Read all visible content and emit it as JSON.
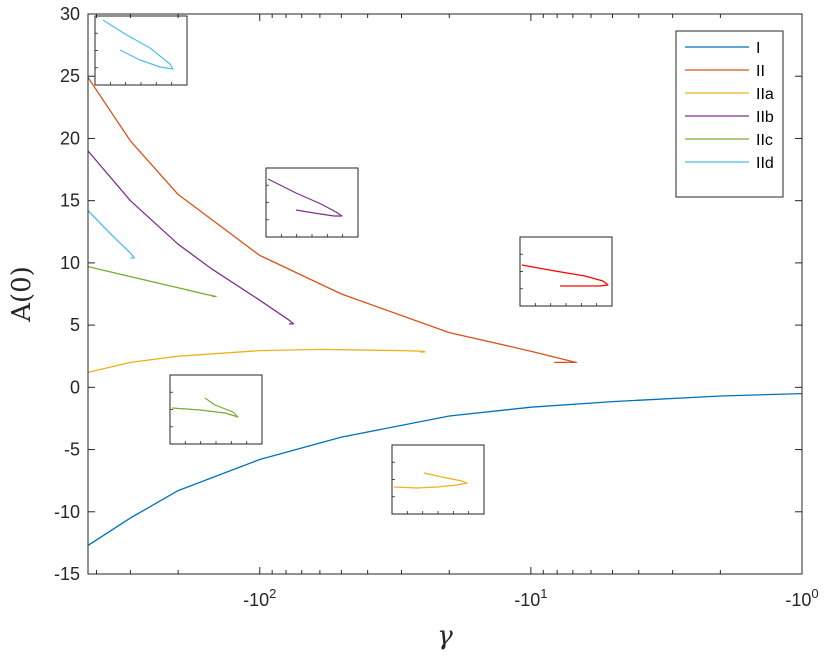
{
  "chart_data": {
    "type": "line",
    "xlabel": "γ",
    "ylabel": "A(0)",
    "xscale": "log (negative γ)",
    "xlim": [
      -430,
      -1
    ],
    "ylim": [
      -15,
      30
    ],
    "xticks": [
      {
        "value": -100,
        "base": "-10",
        "exp": "2"
      },
      {
        "value": -10,
        "base": "-10",
        "exp": "1"
      },
      {
        "value": -1,
        "base": "-10",
        "exp": "0"
      }
    ],
    "yticks": [
      -15,
      -10,
      -5,
      0,
      5,
      10,
      15,
      20,
      25,
      30
    ],
    "legend_position": "top-right",
    "colors": {
      "I": "#0072BD",
      "II": "#D95319",
      "IIa": "#EDB120",
      "IIb": "#7E2F8E",
      "IIc": "#77AC30",
      "IId": "#4DBEEE",
      "inset_II": "#FF0000"
    },
    "series": [
      {
        "name": "I",
        "x": [
          -430,
          -300,
          -200,
          -100,
          -50,
          -20,
          -10,
          -5,
          -2,
          -1
        ],
        "y": [
          -12.7,
          -10.5,
          -8.3,
          -5.8,
          -4.0,
          -2.3,
          -1.6,
          -1.15,
          -0.7,
          -0.5
        ]
      },
      {
        "name": "II",
        "x": [
          -430,
          -300,
          -200,
          -100,
          -50,
          -20,
          -10,
          -7.1,
          -6.8,
          -8.2
        ],
        "y": [
          24.9,
          19.8,
          15.5,
          10.6,
          7.5,
          4.4,
          2.9,
          2.1,
          2.0,
          2.0
        ]
      },
      {
        "name": "IIa",
        "x": [
          -430,
          -300,
          -200,
          -100,
          -60,
          -30,
          -25,
          -24.6,
          -25.5
        ],
        "y": [
          1.2,
          2.0,
          2.5,
          2.95,
          3.05,
          2.95,
          2.9,
          2.85,
          2.82
        ]
      },
      {
        "name": "IIb",
        "x": [
          -430,
          -300,
          -200,
          -150,
          -100,
          -78,
          -75,
          -78
        ],
        "y": [
          19.0,
          15.0,
          11.5,
          9.5,
          7.0,
          5.4,
          5.1,
          5.1
        ]
      },
      {
        "name": "IIc",
        "x": [
          -430,
          -300,
          -200,
          -160,
          -145,
          -150
        ],
        "y": [
          9.7,
          8.9,
          8.0,
          7.5,
          7.3,
          7.3
        ]
      },
      {
        "name": "IId",
        "x": [
          -430,
          -350,
          -300,
          -290,
          -300
        ],
        "y": [
          14.2,
          12.2,
          10.8,
          10.4,
          10.4
        ]
      }
    ]
  }
}
